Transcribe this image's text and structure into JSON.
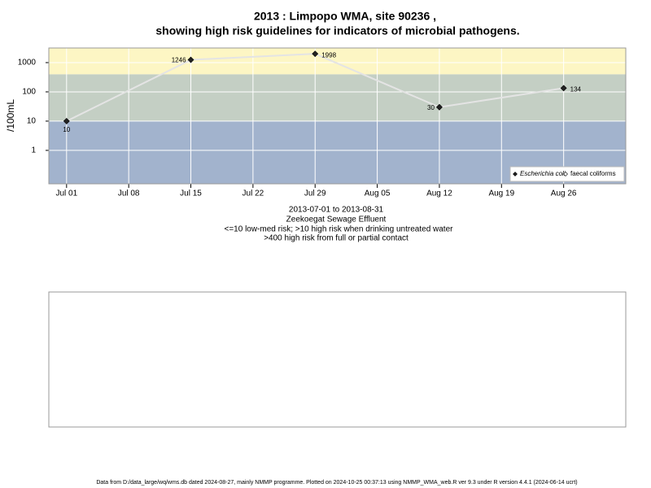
{
  "chart_data": {
    "type": "line",
    "title": "2013 : Limpopo WMA, site 90236 ,",
    "title_line2": "showing high risk guidelines for indicators of microbial pathogens.",
    "y_label": "/100mL",
    "subtitle": [
      "2013-07-01 to 2013-08-31",
      "Zeekoegat Sewage Effluent",
      "<=10 low-med risk; >10 high risk when drinking untreated water",
      ">400 high risk from full or partial contact"
    ],
    "footer": "Data from D:/data_large/wq/wms.db dated 2024-08-27, mainly NMMP programme. Plotted on 2024-10-25 00:37:13 using NMMP_WMA_web.R ver 9.3 under R version 4.4.1 (2024-06-14 ucrt)",
    "log_y": true,
    "grid": true,
    "legend_position": "bottom-right",
    "x": [
      "Jul 01",
      "Jul 15",
      "Jul 29",
      "Aug 12",
      "Aug 26"
    ],
    "xlim": [
      "Jun 29",
      "Sep 02"
    ],
    "xticks": [
      "Jul 01",
      "Jul 08",
      "Jul 15",
      "Jul 22",
      "Jul 29",
      "Aug 05",
      "Aug 12",
      "Aug 19",
      "Aug 26"
    ],
    "ylim": [
      0.072,
      3162
    ],
    "yticks": [
      1,
      10,
      100,
      1000
    ],
    "thresholds": [
      10,
      400
    ],
    "band_colors": [
      "#a2b3cd",
      "#c4cfc4",
      "#fdf6c4"
    ],
    "line_color": "#e4e4e4",
    "series": [
      {
        "name": "Escherichia coli",
        "color": "#222222",
        "values": [
          10,
          1246,
          1998,
          30,
          134
        ]
      },
      {
        "name": "faecal coliforms",
        "color": "#ffffff",
        "values": [
          null,
          null,
          null,
          null,
          null
        ]
      }
    ]
  }
}
